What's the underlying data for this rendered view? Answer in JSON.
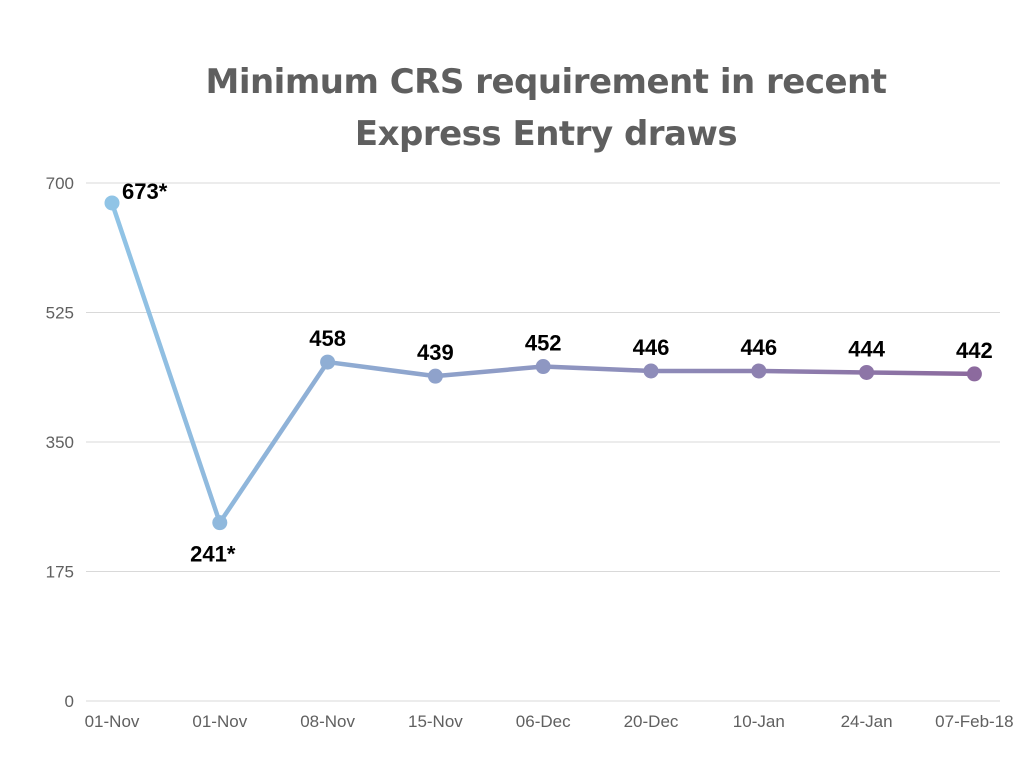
{
  "chart_data": {
    "type": "line",
    "title": "Minimum CRS requirement in recent Express Entry draws",
    "xlabel": "",
    "ylabel": "",
    "categories": [
      "01-Nov",
      "01-Nov",
      "08-Nov",
      "15-Nov",
      "06-Dec",
      "20-Dec",
      "10-Jan",
      "24-Jan",
      "07-Feb-18"
    ],
    "series": [
      {
        "values": [
          673,
          241,
          458,
          439,
          452,
          446,
          446,
          444,
          442
        ],
        "data_labels": [
          "673*",
          "241*",
          "458",
          "439",
          "452",
          "446",
          "446",
          "444",
          "442"
        ]
      }
    ],
    "ylim": [
      0,
      700
    ],
    "yticks": [
      0,
      175,
      350,
      525,
      700
    ],
    "grid": true,
    "legend": "none",
    "colors": {
      "line_start": "#90c4e6",
      "line_end": "#8c6a9e",
      "grid": "#d9d9d9",
      "tick_text": "#606060",
      "title_text": "#5f5f5f"
    }
  }
}
